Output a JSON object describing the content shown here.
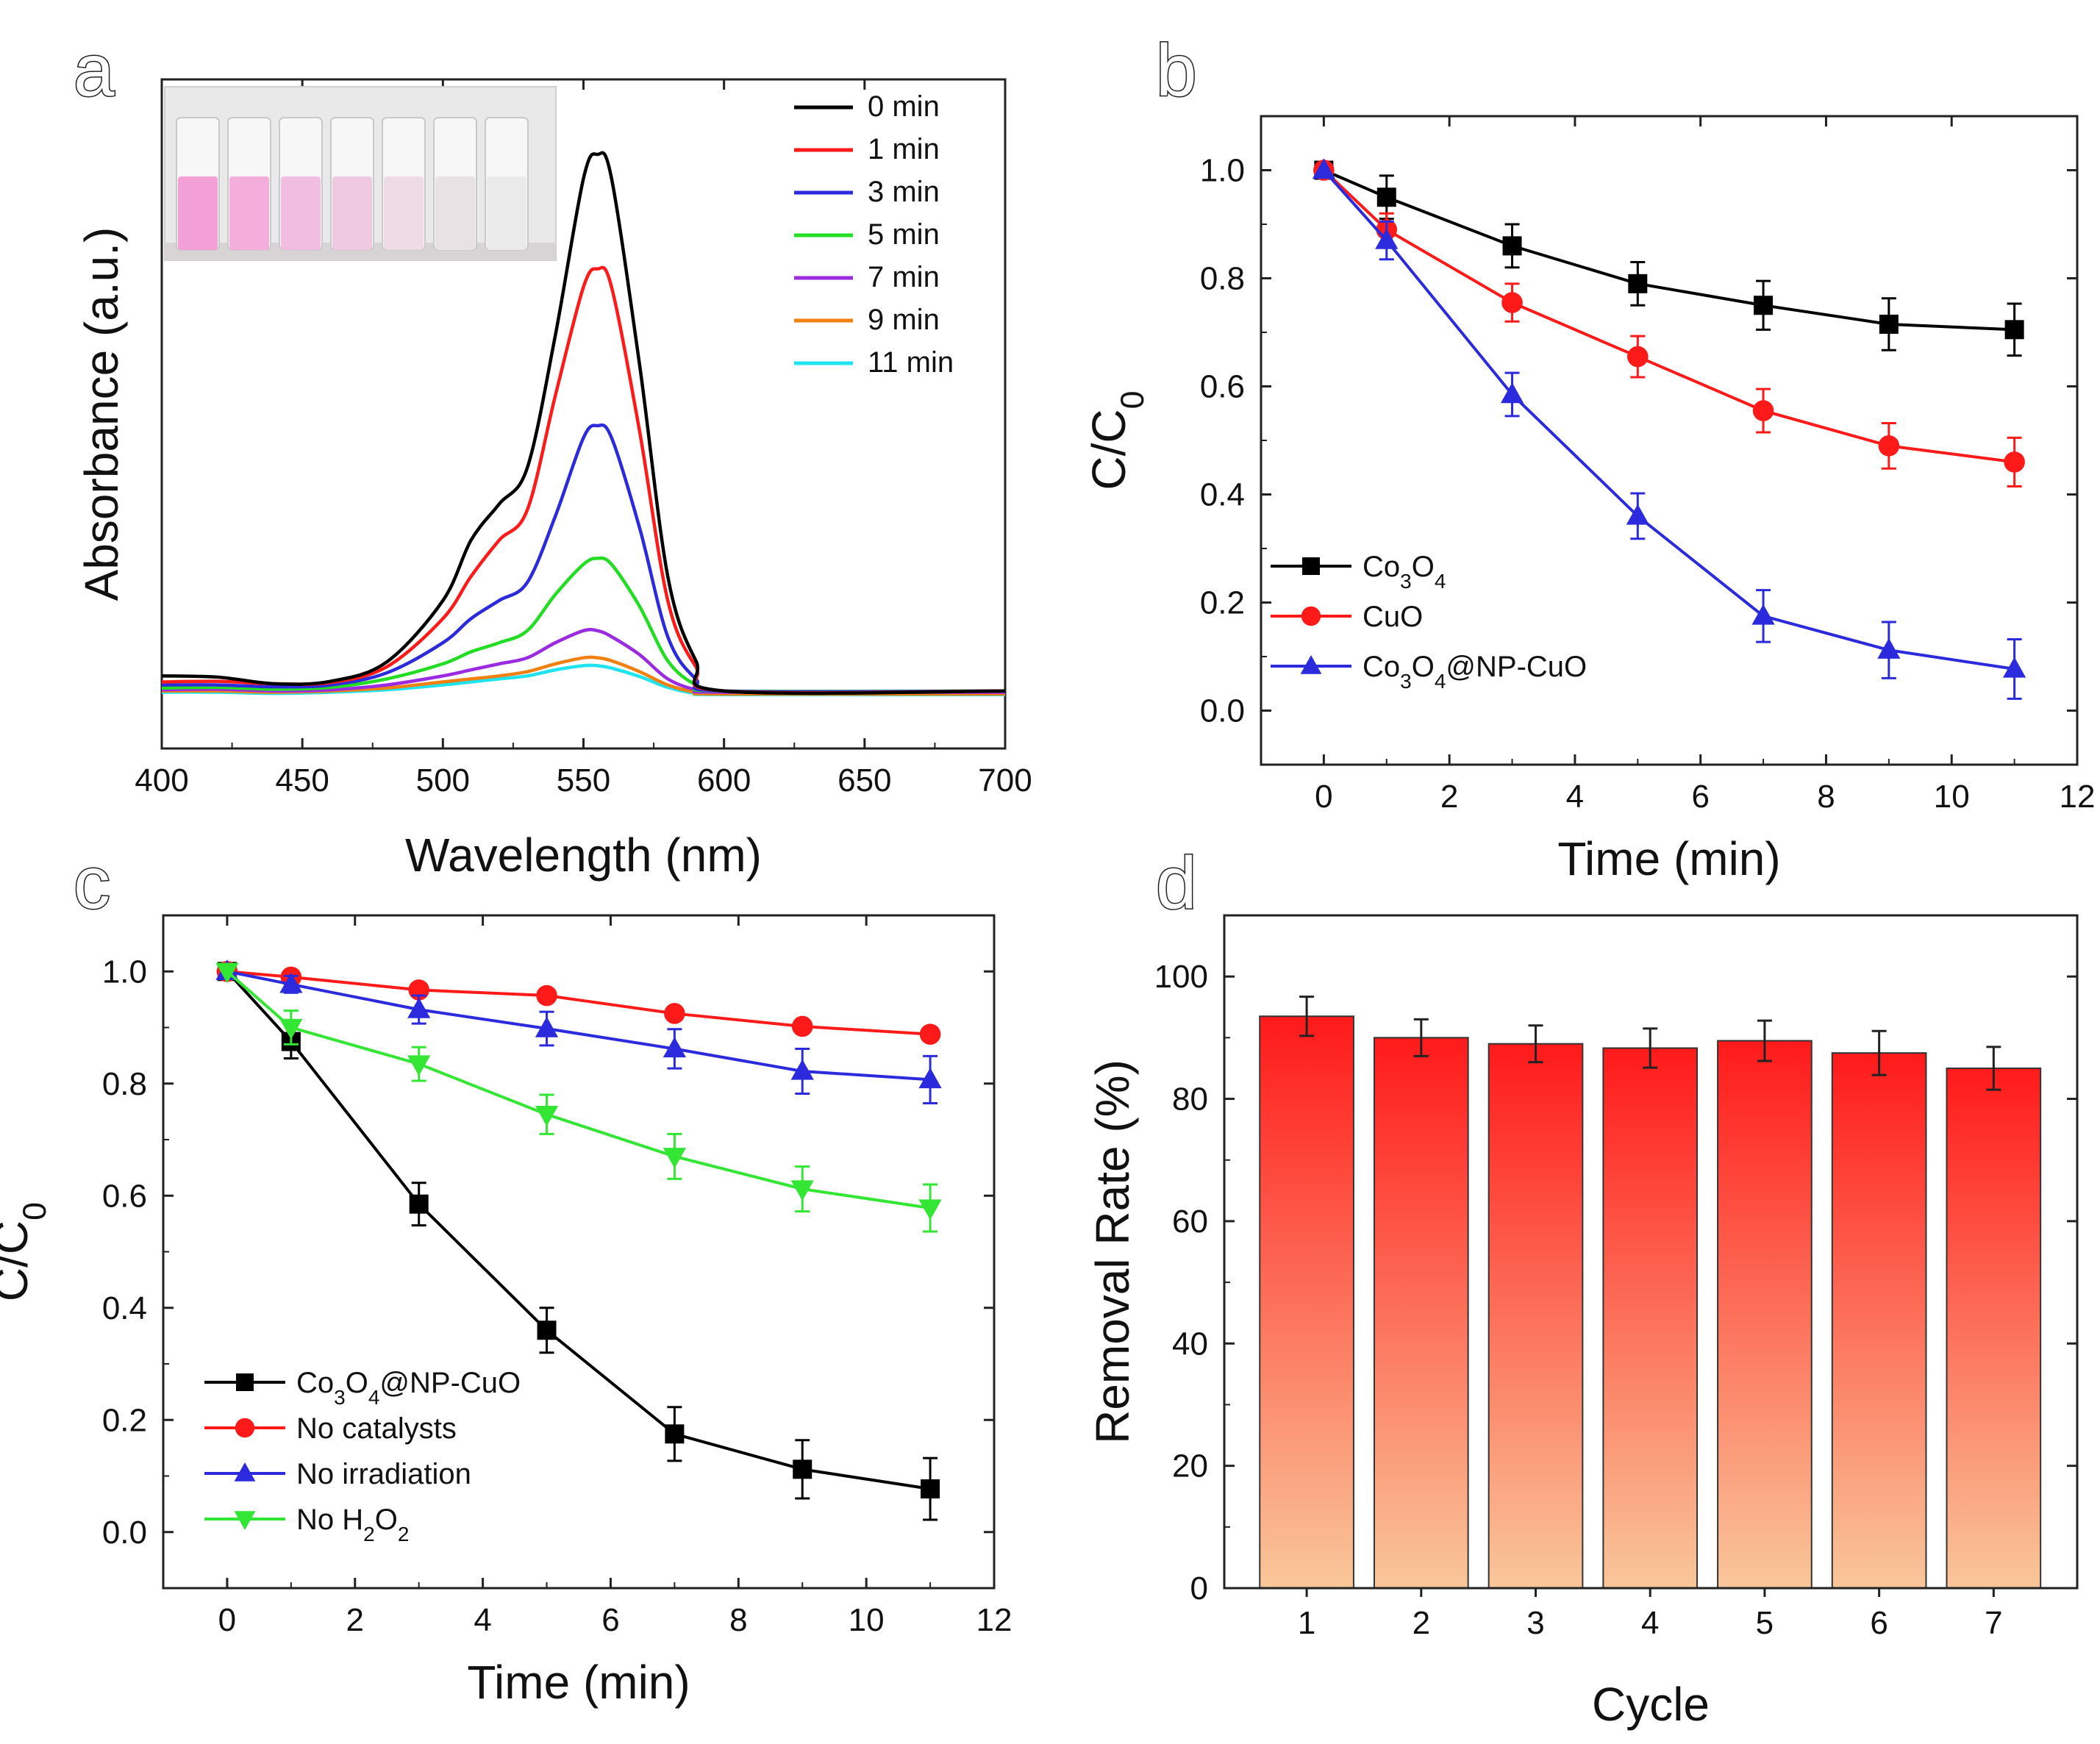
{
  "chart_data": [
    {
      "panel": "a",
      "type": "line",
      "xlabel": "Wavelength (nm)",
      "ylabel": "Absorbance (a.u.)",
      "xlim": [
        400,
        700
      ],
      "ylim": [
        0,
        1.0
      ],
      "x_ticks": [
        400,
        450,
        500,
        550,
        600,
        650,
        700
      ],
      "legend_position": "top-right",
      "inset": "photo of seven vials, solution colour fading from pink to clear",
      "series": [
        {
          "name": "0 min",
          "color": "#000000",
          "points": [
            [
              400,
              0.035
            ],
            [
              420,
              0.033
            ],
            [
              440,
              0.022
            ],
            [
              460,
              0.026
            ],
            [
              480,
              0.058
            ],
            [
              500,
              0.16
            ],
            [
              510,
              0.26
            ],
            [
              520,
              0.32
            ],
            [
              530,
              0.38
            ],
            [
              540,
              0.6
            ],
            [
              550,
              0.86
            ],
            [
              555,
              0.9
            ],
            [
              560,
              0.86
            ],
            [
              570,
              0.55
            ],
            [
              580,
              0.2
            ],
            [
              590,
              0.06
            ],
            [
              600,
              0.01
            ],
            [
              700,
              0.01
            ]
          ]
        },
        {
          "name": "1 min",
          "color": "#ff1a1a",
          "points": [
            [
              400,
              0.025
            ],
            [
              420,
              0.026
            ],
            [
              440,
              0.022
            ],
            [
              460,
              0.024
            ],
            [
              480,
              0.05
            ],
            [
              500,
              0.13
            ],
            [
              510,
              0.2
            ],
            [
              520,
              0.26
            ],
            [
              530,
              0.31
            ],
            [
              540,
              0.5
            ],
            [
              550,
              0.68
            ],
            [
              555,
              0.71
            ],
            [
              560,
              0.68
            ],
            [
              570,
              0.44
            ],
            [
              580,
              0.16
            ],
            [
              590,
              0.05
            ],
            [
              600,
              0.01
            ],
            [
              700,
              0.01
            ]
          ]
        },
        {
          "name": "3 min",
          "color": "#2b2bdd",
          "points": [
            [
              400,
              0.02
            ],
            [
              420,
              0.02
            ],
            [
              440,
              0.017
            ],
            [
              460,
              0.02
            ],
            [
              480,
              0.04
            ],
            [
              500,
              0.09
            ],
            [
              510,
              0.13
            ],
            [
              520,
              0.16
            ],
            [
              530,
              0.19
            ],
            [
              540,
              0.3
            ],
            [
              550,
              0.43
            ],
            [
              555,
              0.45
            ],
            [
              560,
              0.43
            ],
            [
              570,
              0.28
            ],
            [
              580,
              0.1
            ],
            [
              590,
              0.03
            ],
            [
              600,
              0.01
            ],
            [
              700,
              0.01
            ]
          ]
        },
        {
          "name": "5 min",
          "color": "#22dd22",
          "points": [
            [
              400,
              0.015
            ],
            [
              420,
              0.016
            ],
            [
              440,
              0.013
            ],
            [
              460,
              0.016
            ],
            [
              480,
              0.03
            ],
            [
              500,
              0.055
            ],
            [
              510,
              0.075
            ],
            [
              520,
              0.09
            ],
            [
              530,
              0.11
            ],
            [
              540,
              0.17
            ],
            [
              550,
              0.22
            ],
            [
              555,
              0.23
            ],
            [
              560,
              0.22
            ],
            [
              570,
              0.15
            ],
            [
              580,
              0.06
            ],
            [
              590,
              0.02
            ],
            [
              600,
              0.01
            ],
            [
              700,
              0.01
            ]
          ]
        },
        {
          "name": "7 min",
          "color": "#9a2be0",
          "points": [
            [
              400,
              0.012
            ],
            [
              420,
              0.013
            ],
            [
              440,
              0.01
            ],
            [
              460,
              0.012
            ],
            [
              480,
              0.02
            ],
            [
              500,
              0.035
            ],
            [
              510,
              0.045
            ],
            [
              520,
              0.055
            ],
            [
              530,
              0.065
            ],
            [
              540,
              0.09
            ],
            [
              550,
              0.11
            ],
            [
              555,
              0.11
            ],
            [
              560,
              0.1
            ],
            [
              570,
              0.07
            ],
            [
              580,
              0.03
            ],
            [
              590,
              0.012
            ],
            [
              600,
              0.008
            ],
            [
              700,
              0.008
            ]
          ]
        },
        {
          "name": "9 min",
          "color": "#f08010",
          "points": [
            [
              400,
              0.01
            ],
            [
              420,
              0.01
            ],
            [
              440,
              0.008
            ],
            [
              460,
              0.01
            ],
            [
              480,
              0.015
            ],
            [
              500,
              0.025
            ],
            [
              510,
              0.03
            ],
            [
              520,
              0.035
            ],
            [
              530,
              0.042
            ],
            [
              540,
              0.055
            ],
            [
              550,
              0.065
            ],
            [
              555,
              0.065
            ],
            [
              560,
              0.06
            ],
            [
              570,
              0.042
            ],
            [
              580,
              0.02
            ],
            [
              590,
              0.008
            ],
            [
              600,
              0.005
            ],
            [
              700,
              0.005
            ]
          ]
        },
        {
          "name": "11 min",
          "color": "#1fe3f0",
          "points": [
            [
              400,
              0.008
            ],
            [
              420,
              0.008
            ],
            [
              440,
              0.006
            ],
            [
              460,
              0.008
            ],
            [
              480,
              0.012
            ],
            [
              500,
              0.02
            ],
            [
              510,
              0.025
            ],
            [
              520,
              0.03
            ],
            [
              530,
              0.035
            ],
            [
              540,
              0.045
            ],
            [
              550,
              0.052
            ],
            [
              555,
              0.052
            ],
            [
              560,
              0.048
            ],
            [
              570,
              0.034
            ],
            [
              580,
              0.016
            ],
            [
              590,
              0.006
            ],
            [
              600,
              0.004
            ],
            [
              700,
              0.004
            ]
          ]
        }
      ]
    },
    {
      "panel": "b",
      "type": "line",
      "xlabel": "Time (min)",
      "ylabel": "C/C",
      "ylabel_sub": "0",
      "xlim": [
        -1,
        12
      ],
      "ylim": [
        -0.1,
        1.1
      ],
      "x_ticks": [
        0,
        2,
        4,
        6,
        8,
        10,
        12
      ],
      "y_ticks": [
        0.0,
        0.2,
        0.4,
        0.6,
        0.8,
        1.0
      ],
      "legend_position": "bottom-left",
      "series": [
        {
          "name": "Co3O4",
          "label_parts": [
            [
              "Co",
              ""
            ],
            [
              "3",
              "sub"
            ],
            [
              "O",
              ""
            ],
            [
              "4",
              "sub"
            ]
          ],
          "color": "#000000",
          "marker": "square",
          "x": [
            0,
            1,
            3,
            5,
            7,
            9,
            11
          ],
          "y": [
            1.0,
            0.95,
            0.86,
            0.79,
            0.75,
            0.715,
            0.705
          ],
          "err": [
            0.0,
            0.04,
            0.04,
            0.04,
            0.045,
            0.048,
            0.048
          ]
        },
        {
          "name": "CuO",
          "label_parts": [
            [
              "CuO",
              ""
            ]
          ],
          "color": "#ff1a1a",
          "marker": "circle",
          "x": [
            0,
            1,
            3,
            5,
            7,
            9,
            11
          ],
          "y": [
            1.0,
            0.89,
            0.755,
            0.655,
            0.555,
            0.49,
            0.46
          ],
          "err": [
            0.0,
            0.03,
            0.035,
            0.038,
            0.04,
            0.042,
            0.045
          ]
        },
        {
          "name": "Co3O4@NP-CuO",
          "label_parts": [
            [
              "Co",
              ""
            ],
            [
              "3",
              "sub"
            ],
            [
              "O",
              ""
            ],
            [
              "4",
              "sub"
            ],
            [
              "@NP-CuO",
              ""
            ]
          ],
          "color": "#2b2bdd",
          "marker": "triangle-up",
          "x": [
            0,
            1,
            3,
            5,
            7,
            9,
            11
          ],
          "y": [
            1.0,
            0.87,
            0.585,
            0.36,
            0.175,
            0.112,
            0.077
          ],
          "err": [
            0.0,
            0.035,
            0.04,
            0.042,
            0.048,
            0.052,
            0.055
          ]
        }
      ]
    },
    {
      "panel": "c",
      "type": "line",
      "xlabel": "Time (min)",
      "ylabel": "C/C",
      "ylabel_sub": "0",
      "xlim": [
        -1,
        12
      ],
      "ylim": [
        -0.1,
        1.1
      ],
      "x_ticks": [
        0,
        2,
        4,
        6,
        8,
        10,
        12
      ],
      "y_ticks": [
        0.0,
        0.2,
        0.4,
        0.6,
        0.8,
        1.0
      ],
      "legend_position": "bottom-left",
      "series": [
        {
          "name": "Co3O4@NP-CuO",
          "label_parts": [
            [
              "Co",
              ""
            ],
            [
              "3",
              "sub"
            ],
            [
              "O",
              ""
            ],
            [
              "4",
              "sub"
            ],
            [
              "@NP-CuO",
              ""
            ]
          ],
          "color": "#000000",
          "marker": "square",
          "x": [
            0,
            1,
            3,
            5,
            7,
            9,
            11
          ],
          "y": [
            1.0,
            0.875,
            0.585,
            0.36,
            0.175,
            0.112,
            0.077
          ],
          "err": [
            0.0,
            0.03,
            0.038,
            0.04,
            0.048,
            0.052,
            0.055
          ]
        },
        {
          "name": "No catalysts",
          "label_parts": [
            [
              "No catalysts",
              ""
            ]
          ],
          "color": "#ff1a1a",
          "marker": "circle",
          "x": [
            0,
            1,
            3,
            5,
            7,
            9,
            11
          ],
          "y": [
            1.0,
            0.99,
            0.967,
            0.957,
            0.925,
            0.902,
            0.888
          ],
          "err": [
            0.0,
            0.0,
            0.0,
            0.0,
            0.0,
            0.0,
            0.0
          ]
        },
        {
          "name": "No irradiation",
          "label_parts": [
            [
              "No irradiation",
              ""
            ]
          ],
          "color": "#2b2bdd",
          "marker": "triangle-up",
          "x": [
            0,
            1,
            3,
            5,
            7,
            9,
            11
          ],
          "y": [
            1.0,
            0.977,
            0.932,
            0.898,
            0.862,
            0.822,
            0.807
          ],
          "err": [
            0.0,
            0.015,
            0.025,
            0.03,
            0.035,
            0.04,
            0.042
          ]
        },
        {
          "name": "No H2O2",
          "label_parts": [
            [
              "No H",
              ""
            ],
            [
              "2",
              "sub"
            ],
            [
              "O",
              ""
            ],
            [
              "2",
              "sub"
            ]
          ],
          "color": "#33e633",
          "marker": "triangle-down",
          "x": [
            0,
            1,
            3,
            5,
            7,
            9,
            11
          ],
          "y": [
            1.0,
            0.9,
            0.835,
            0.745,
            0.67,
            0.612,
            0.578
          ],
          "err": [
            0.0,
            0.03,
            0.03,
            0.035,
            0.04,
            0.04,
            0.042
          ]
        }
      ]
    },
    {
      "panel": "d",
      "type": "bar",
      "xlabel": "Cycle",
      "ylabel": "Removal Rate (%)",
      "ylim": [
        0,
        110
      ],
      "y_ticks": [
        0,
        20,
        40,
        60,
        80,
        100
      ],
      "categories": [
        "1",
        "2",
        "3",
        "4",
        "5",
        "6",
        "7"
      ],
      "values": [
        93.5,
        90,
        89,
        88.3,
        89.5,
        87.5,
        85
      ],
      "err": [
        3.2,
        3.0,
        3.0,
        3.2,
        3.3,
        3.6,
        3.5
      ],
      "bar_gradient": [
        "#ff1a1a",
        "#f9c79a"
      ]
    }
  ],
  "panel_labels": [
    "a",
    "b",
    "c",
    "d"
  ]
}
